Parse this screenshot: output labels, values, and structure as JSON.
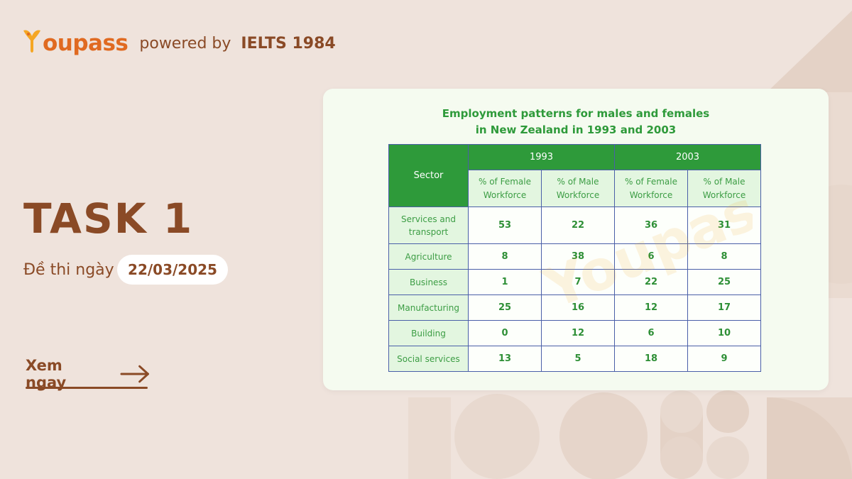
{
  "brand": {
    "logo_text_first": "Y",
    "logo_text_rest": "oupass",
    "powered_by": "powered by",
    "partner": "IELTS 1984",
    "colors": {
      "logo_orange": "#e06a21",
      "logo_yellow": "#f5a623",
      "brown": "#8a4a26"
    }
  },
  "hero": {
    "title": "TASK 1",
    "exam_label": "Đề thi ngày",
    "exam_date": "22/03/2025",
    "cta_label": "Xem ngay",
    "cta_icon": "arrow-right-icon"
  },
  "table": {
    "title_line1": "Employment patterns for males and females",
    "title_line2": "in New Zealand in 1993 and 2003",
    "sector_header": "Sector",
    "years": [
      "1993",
      "2003"
    ],
    "subheaders": [
      [
        "% of Female",
        "Workforce"
      ],
      [
        "% of Male",
        "Workforce"
      ],
      [
        "% of Female",
        "Workforce"
      ],
      [
        "% of Male",
        "Workforce"
      ]
    ],
    "rows": [
      {
        "sector": [
          "Services and",
          "transport"
        ],
        "values": [
          "53",
          "22",
          "36",
          "31"
        ]
      },
      {
        "sector": [
          "Agriculture"
        ],
        "values": [
          "8",
          "38",
          "6",
          "8"
        ]
      },
      {
        "sector": [
          "Business"
        ],
        "values": [
          "1",
          "7",
          "22",
          "25"
        ]
      },
      {
        "sector": [
          "Manufacturing"
        ],
        "values": [
          "25",
          "16",
          "12",
          "17"
        ]
      },
      {
        "sector": [
          "Building"
        ],
        "values": [
          "0",
          "12",
          "6",
          "10"
        ]
      },
      {
        "sector": [
          "Social services"
        ],
        "values": [
          "13",
          "5",
          "18",
          "9"
        ]
      }
    ],
    "colors": {
      "header_green": "#2e9a3a",
      "light_green": "#e3f6e0",
      "border_blue": "#4a5fa8"
    }
  },
  "watermark_text": "Youpass"
}
